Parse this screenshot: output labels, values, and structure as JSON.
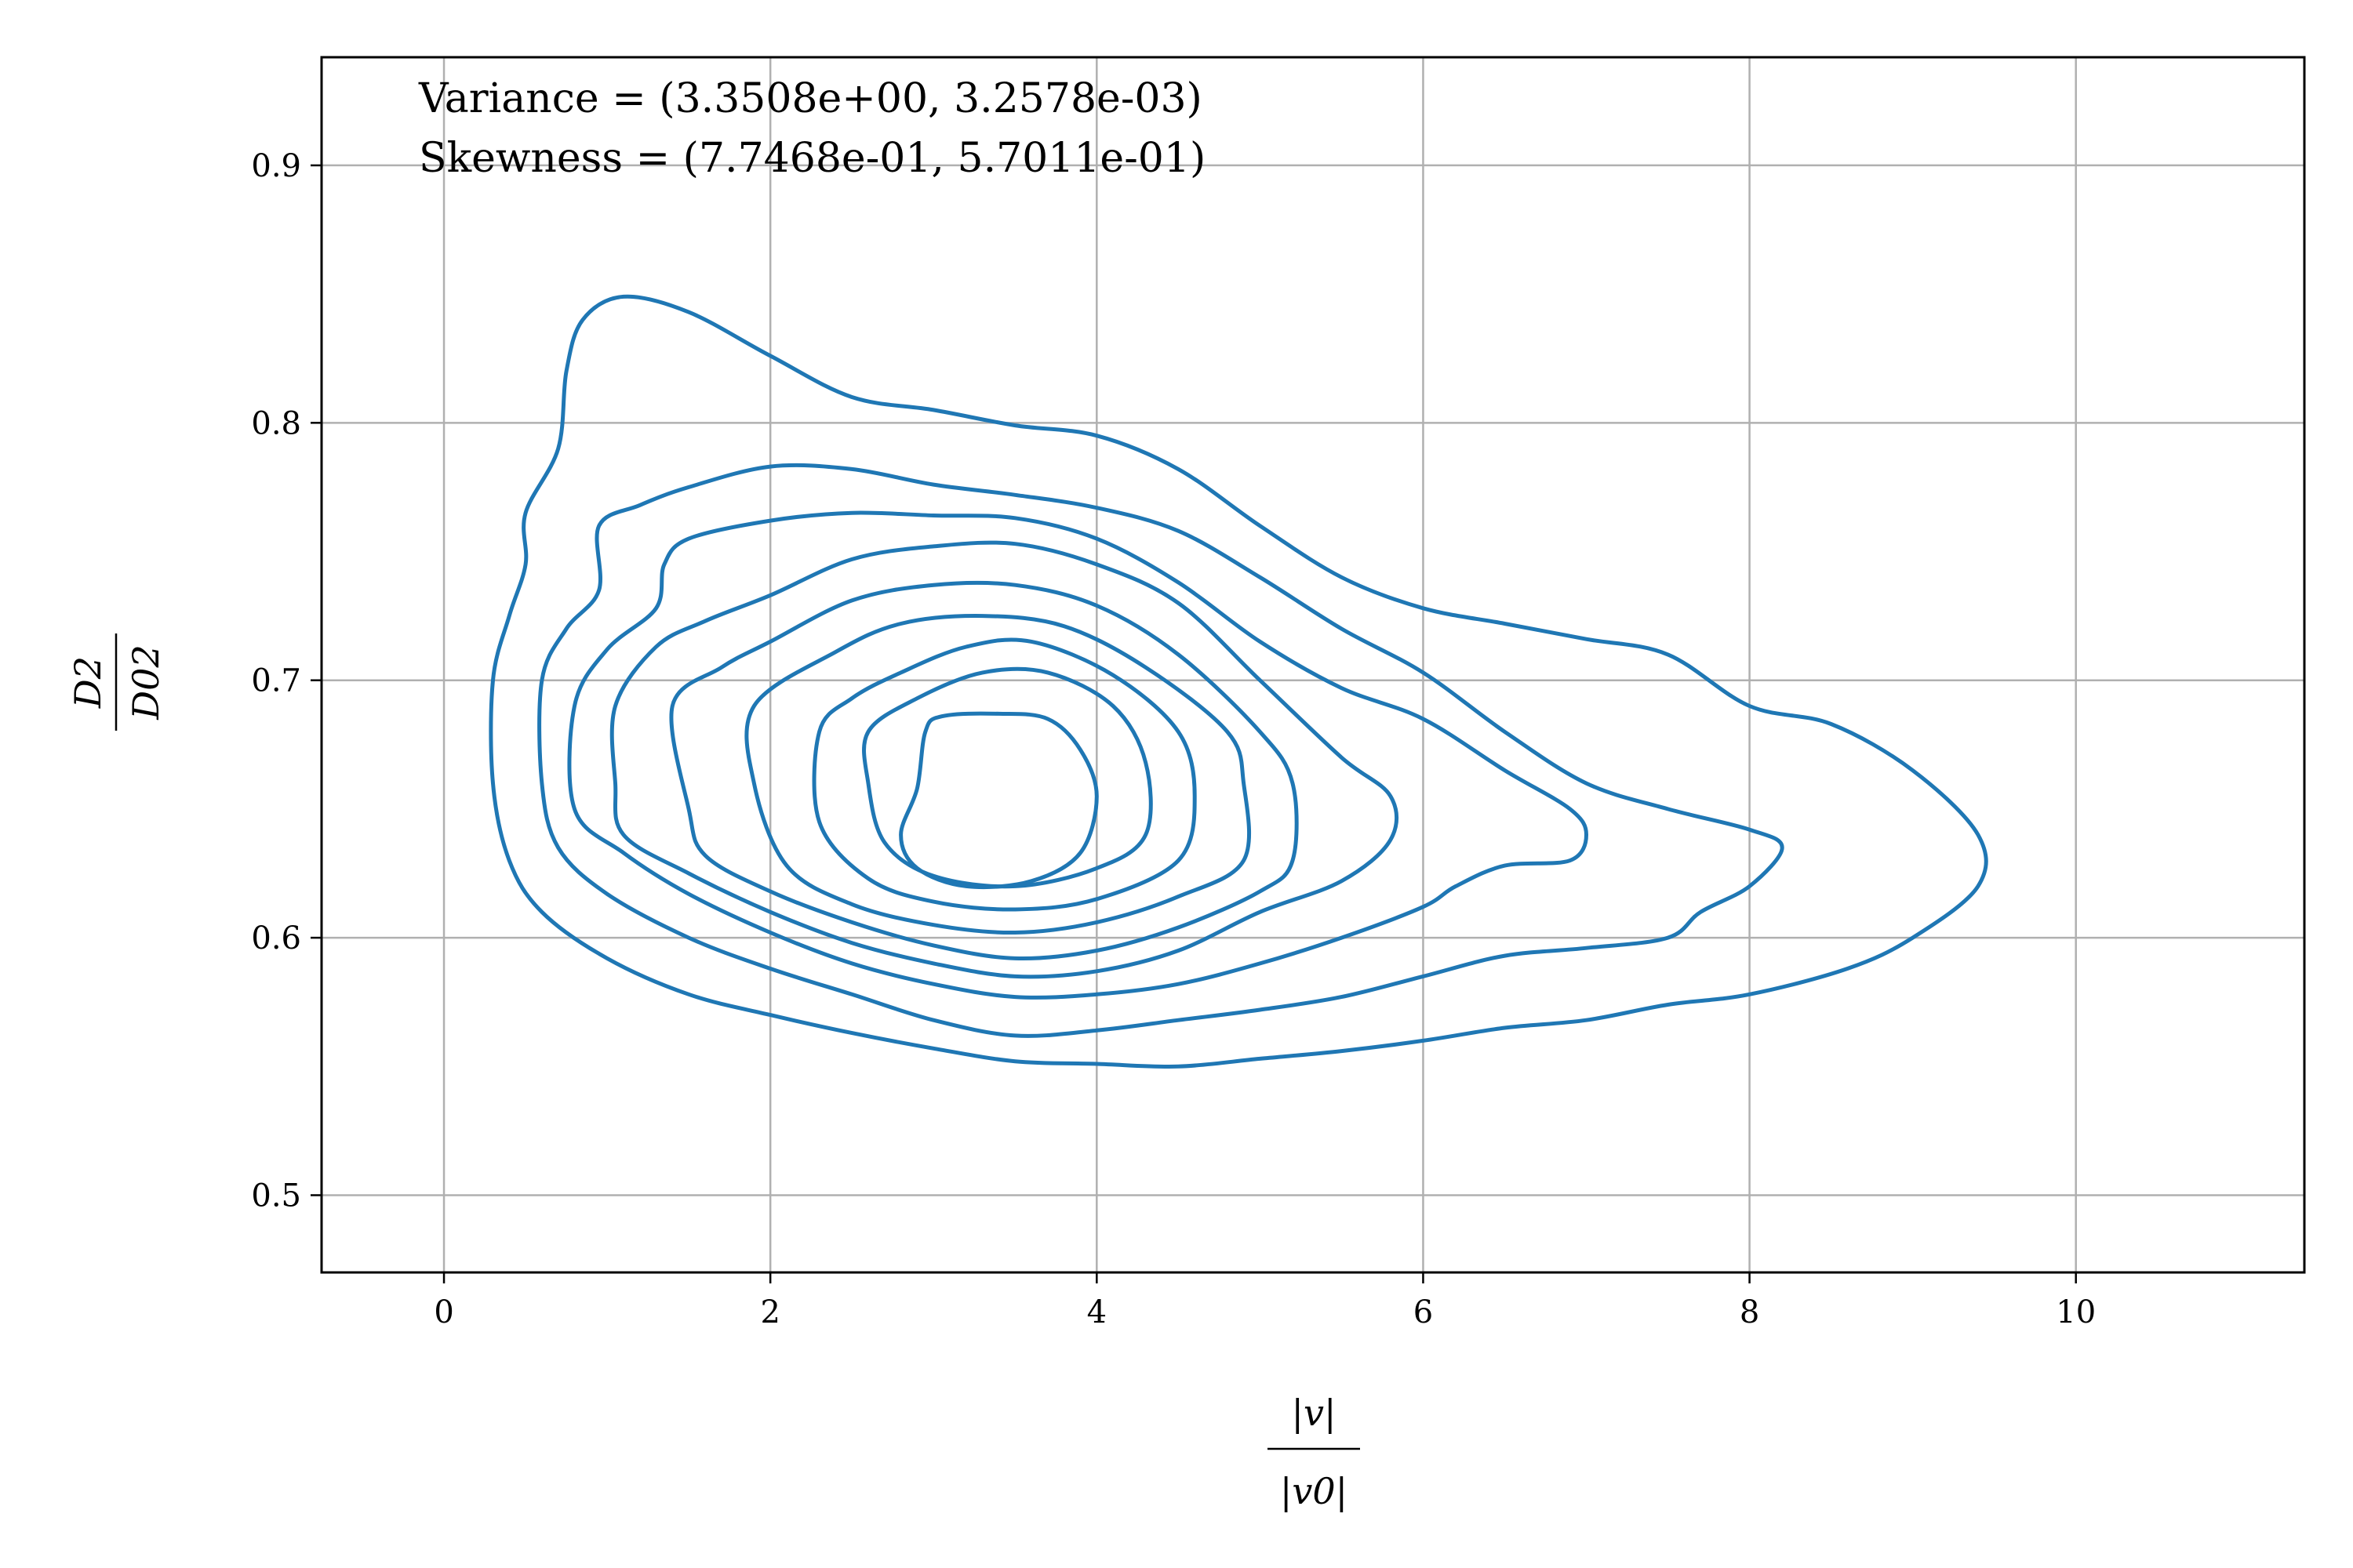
{
  "chart_data": {
    "type": "contour",
    "xlabel": {
      "num": "|v|",
      "den": "|v0|"
    },
    "ylabel": {
      "num": "D2",
      "den": "D02"
    },
    "xlim": [
      -0.75,
      11.4
    ],
    "ylim": [
      0.47,
      0.942
    ],
    "xticks": [
      0,
      2,
      4,
      6,
      8,
      10
    ],
    "yticks": [
      0.5,
      0.6,
      0.7,
      0.8,
      0.9
    ],
    "xtick_labels": [
      "0",
      "2",
      "4",
      "6",
      "8",
      "10"
    ],
    "ytick_labels": [
      "0.5",
      "0.6",
      "0.7",
      "0.8",
      "0.9"
    ],
    "grid": true,
    "line_color": "#1f77b4",
    "annotations": [
      "Variance = (3.3508e+00, 3.2578e-03)",
      "Skewness = (7.7468e-01, 5.7011e-01)"
    ],
    "contours": [
      {
        "level": 1,
        "points": [
          [
            1.1,
            0.849
          ],
          [
            1.5,
            0.843
          ],
          [
            2,
            0.826
          ],
          [
            2.5,
            0.81
          ],
          [
            3,
            0.805
          ],
          [
            3.5,
            0.799
          ],
          [
            4,
            0.795
          ],
          [
            4.5,
            0.782
          ],
          [
            5,
            0.76
          ],
          [
            5.5,
            0.74
          ],
          [
            6,
            0.728
          ],
          [
            6.5,
            0.722
          ],
          [
            7,
            0.716
          ],
          [
            7.5,
            0.71
          ],
          [
            8,
            0.69
          ],
          [
            8.5,
            0.683
          ],
          [
            9,
            0.665
          ],
          [
            9.4,
            0.64
          ],
          [
            9.4,
            0.62
          ],
          [
            9,
            0.6
          ],
          [
            8.6,
            0.588
          ],
          [
            8,
            0.578
          ],
          [
            7.5,
            0.574
          ],
          [
            7,
            0.568
          ],
          [
            6.5,
            0.565
          ],
          [
            6,
            0.56
          ],
          [
            5.5,
            0.556
          ],
          [
            5,
            0.553
          ],
          [
            4.5,
            0.55
          ],
          [
            4,
            0.551
          ],
          [
            3.5,
            0.552
          ],
          [
            3,
            0.557
          ],
          [
            2.5,
            0.563
          ],
          [
            2,
            0.57
          ],
          [
            1.5,
            0.578
          ],
          [
            1,
            0.592
          ],
          [
            0.6,
            0.61
          ],
          [
            0.4,
            0.63
          ],
          [
            0.3,
            0.66
          ],
          [
            0.3,
            0.7
          ],
          [
            0.4,
            0.725
          ],
          [
            0.5,
            0.745
          ],
          [
            0.5,
            0.765
          ],
          [
            0.7,
            0.79
          ],
          [
            0.75,
            0.82
          ],
          [
            0.85,
            0.84
          ]
        ]
      },
      {
        "level": 2,
        "points": [
          [
            1.5,
            0.775
          ],
          [
            2,
            0.783
          ],
          [
            2.5,
            0.782
          ],
          [
            3,
            0.776
          ],
          [
            3.5,
            0.772
          ],
          [
            4,
            0.767
          ],
          [
            4.5,
            0.758
          ],
          [
            5,
            0.74
          ],
          [
            5.5,
            0.72
          ],
          [
            6,
            0.703
          ],
          [
            6.5,
            0.68
          ],
          [
            7,
            0.66
          ],
          [
            7.5,
            0.65
          ],
          [
            8,
            0.642
          ],
          [
            8.2,
            0.635
          ],
          [
            8,
            0.62
          ],
          [
            7.7,
            0.61
          ],
          [
            7.5,
            0.6
          ],
          [
            7,
            0.596
          ],
          [
            6.5,
            0.593
          ],
          [
            6,
            0.585
          ],
          [
            5.5,
            0.577
          ],
          [
            5,
            0.572
          ],
          [
            4.5,
            0.568
          ],
          [
            4,
            0.564
          ],
          [
            3.5,
            0.562
          ],
          [
            3,
            0.568
          ],
          [
            2.5,
            0.578
          ],
          [
            2,
            0.588
          ],
          [
            1.5,
            0.6
          ],
          [
            1,
            0.617
          ],
          [
            0.7,
            0.635
          ],
          [
            0.6,
            0.66
          ],
          [
            0.6,
            0.7
          ],
          [
            0.75,
            0.72
          ],
          [
            0.95,
            0.735
          ],
          [
            0.95,
            0.76
          ],
          [
            1.2,
            0.768
          ]
        ]
      },
      {
        "level": 3,
        "points": [
          [
            1.5,
            0.755
          ],
          [
            2,
            0.762
          ],
          [
            2.5,
            0.765
          ],
          [
            3,
            0.764
          ],
          [
            3.5,
            0.763
          ],
          [
            4,
            0.755
          ],
          [
            4.5,
            0.738
          ],
          [
            5,
            0.715
          ],
          [
            5.5,
            0.697
          ],
          [
            6,
            0.685
          ],
          [
            6.5,
            0.665
          ],
          [
            6.9,
            0.65
          ],
          [
            7,
            0.64
          ],
          [
            6.9,
            0.63
          ],
          [
            6.5,
            0.628
          ],
          [
            6.2,
            0.62
          ],
          [
            6,
            0.612
          ],
          [
            5.5,
            0.6
          ],
          [
            5,
            0.59
          ],
          [
            4.5,
            0.582
          ],
          [
            4,
            0.578
          ],
          [
            3.5,
            0.577
          ],
          [
            3,
            0.582
          ],
          [
            2.5,
            0.59
          ],
          [
            2,
            0.602
          ],
          [
            1.5,
            0.617
          ],
          [
            1.1,
            0.633
          ],
          [
            0.8,
            0.65
          ],
          [
            0.8,
            0.69
          ],
          [
            1,
            0.712
          ],
          [
            1.3,
            0.728
          ],
          [
            1.35,
            0.745
          ]
        ]
      },
      {
        "level": 4,
        "points": [
          [
            2,
            0.733
          ],
          [
            2.5,
            0.747
          ],
          [
            3,
            0.752
          ],
          [
            3.5,
            0.753
          ],
          [
            4,
            0.745
          ],
          [
            4.5,
            0.73
          ],
          [
            5,
            0.7
          ],
          [
            5.5,
            0.67
          ],
          [
            5.8,
            0.655
          ],
          [
            5.8,
            0.638
          ],
          [
            5.5,
            0.622
          ],
          [
            5,
            0.61
          ],
          [
            4.5,
            0.595
          ],
          [
            4,
            0.587
          ],
          [
            3.5,
            0.585
          ],
          [
            3,
            0.59
          ],
          [
            2.5,
            0.598
          ],
          [
            2,
            0.61
          ],
          [
            1.5,
            0.625
          ],
          [
            1.1,
            0.64
          ],
          [
            1.05,
            0.66
          ],
          [
            1.05,
            0.69
          ],
          [
            1.3,
            0.713
          ],
          [
            1.6,
            0.723
          ]
        ]
      },
      {
        "level": 5,
        "points": [
          [
            2,
            0.715
          ],
          [
            2.5,
            0.731
          ],
          [
            3,
            0.737
          ],
          [
            3.5,
            0.737
          ],
          [
            4,
            0.729
          ],
          [
            4.5,
            0.71
          ],
          [
            5,
            0.68
          ],
          [
            5.2,
            0.66
          ],
          [
            5.2,
            0.63
          ],
          [
            5,
            0.618
          ],
          [
            4.5,
            0.604
          ],
          [
            4,
            0.595
          ],
          [
            3.5,
            0.592
          ],
          [
            3,
            0.597
          ],
          [
            2.5,
            0.606
          ],
          [
            2,
            0.618
          ],
          [
            1.6,
            0.632
          ],
          [
            1.5,
            0.65
          ],
          [
            1.4,
            0.69
          ],
          [
            1.7,
            0.705
          ]
        ]
      },
      {
        "level": 6,
        "points": [
          [
            2.4,
            0.711
          ],
          [
            2.8,
            0.722
          ],
          [
            3.3,
            0.725
          ],
          [
            3.8,
            0.721
          ],
          [
            4.3,
            0.705
          ],
          [
            4.8,
            0.68
          ],
          [
            4.9,
            0.66
          ],
          [
            4.9,
            0.63
          ],
          [
            4.5,
            0.616
          ],
          [
            4,
            0.606
          ],
          [
            3.5,
            0.602
          ],
          [
            3,
            0.605
          ],
          [
            2.5,
            0.613
          ],
          [
            2.1,
            0.628
          ],
          [
            1.9,
            0.66
          ],
          [
            1.9,
            0.69
          ]
        ]
      },
      {
        "level": 7,
        "points": [
          [
            2.8,
            0.703
          ],
          [
            3.2,
            0.713
          ],
          [
            3.6,
            0.715
          ],
          [
            4.1,
            0.702
          ],
          [
            4.5,
            0.68
          ],
          [
            4.6,
            0.655
          ],
          [
            4.5,
            0.63
          ],
          [
            4,
            0.615
          ],
          [
            3.5,
            0.611
          ],
          [
            3,
            0.614
          ],
          [
            2.6,
            0.623
          ],
          [
            2.3,
            0.645
          ],
          [
            2.3,
            0.68
          ],
          [
            2.5,
            0.693
          ]
        ]
      },
      {
        "level": 8,
        "points": [
          [
            2.9,
            0.693
          ],
          [
            3.3,
            0.703
          ],
          [
            3.7,
            0.703
          ],
          [
            4.1,
            0.69
          ],
          [
            4.3,
            0.668
          ],
          [
            4.3,
            0.64
          ],
          [
            4,
            0.627
          ],
          [
            3.5,
            0.62
          ],
          [
            3,
            0.624
          ],
          [
            2.7,
            0.637
          ],
          [
            2.6,
            0.66
          ],
          [
            2.6,
            0.68
          ]
        ]
      },
      {
        "level": 9,
        "points": [
          [
            3.4,
            0.687
          ],
          [
            3.7,
            0.685
          ],
          [
            3.9,
            0.673
          ],
          [
            4.0,
            0.655
          ],
          [
            3.9,
            0.633
          ],
          [
            3.6,
            0.622
          ],
          [
            3.2,
            0.62
          ],
          [
            2.9,
            0.627
          ],
          [
            2.8,
            0.64
          ],
          [
            2.9,
            0.658
          ],
          [
            2.95,
            0.68
          ],
          [
            3.05,
            0.686
          ]
        ]
      }
    ]
  }
}
